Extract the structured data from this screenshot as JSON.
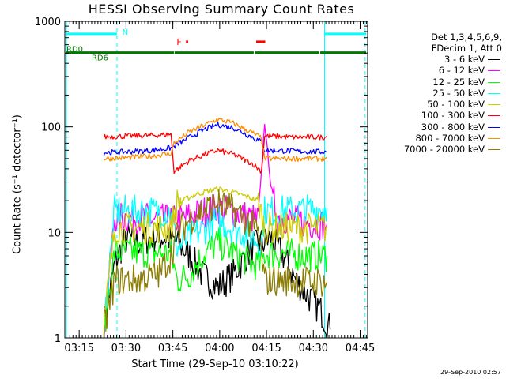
{
  "title": "HESSI Observing Summary Count Rates",
  "xlabel": "Start Time (29-Sep-10 03:10:22)",
  "ylabel": "Count Rate (s⁻¹ detector⁻¹)",
  "footer_stamp": "29-Sep-2010 02:57",
  "legend_header": [
    "Det 1,3,4,5,6,9,",
    "FDecim 1, Att 0"
  ],
  "chart_data": {
    "type": "line",
    "title": "HESSI Observing Summary Count Rates",
    "xlabel": "Start Time (29-Sep-10 03:10:22)",
    "ylabel": "Count Rate (s⁻¹ detector⁻¹)",
    "x_unit": "minutes after 03:10:22",
    "xlim": [
      0,
      97
    ],
    "ylim": [
      1,
      1000
    ],
    "yscale": "log",
    "x_ticks": [
      "03:15",
      "03:30",
      "03:45",
      "04:00",
      "04:15",
      "04:30",
      "04:45"
    ],
    "x_tick_values": [
      4.6,
      19.6,
      34.6,
      49.6,
      64.6,
      79.6,
      94.6
    ],
    "y_ticks": [
      "1",
      "10",
      "100",
      "1000"
    ],
    "y_tick_values": [
      1,
      10,
      100,
      1000
    ],
    "legend_position": "right, outside plot",
    "flag_labels": [
      "N",
      "F",
      "RD0",
      "RD6"
    ],
    "data_gaps": [
      [
        0,
        12.5
      ],
      [
        87.0,
        97
      ]
    ],
    "night_boundaries": [
      0.5,
      16.7,
      83.2,
      96.2
    ],
    "series": [
      {
        "name": "3 - 6 keV",
        "color": "#000000",
        "points": [
          [
            12.5,
            1.3
          ],
          [
            16,
            5
          ],
          [
            18,
            7
          ],
          [
            20,
            9
          ],
          [
            24,
            8
          ],
          [
            28,
            9
          ],
          [
            32,
            9
          ],
          [
            36,
            8
          ],
          [
            40,
            6
          ],
          [
            44,
            4
          ],
          [
            49,
            3
          ],
          [
            54,
            4
          ],
          [
            58,
            6
          ],
          [
            62,
            8
          ],
          [
            64,
            8
          ],
          [
            66,
            9
          ],
          [
            70,
            6
          ],
          [
            74,
            3.5
          ],
          [
            78,
            2.5
          ],
          [
            82,
            1.8
          ],
          [
            85,
            1.2
          ]
        ]
      },
      {
        "name": "6 - 12 keV",
        "color": "#ff00ff",
        "points": [
          [
            12.5,
            1.2
          ],
          [
            16,
            14
          ],
          [
            22,
            14
          ],
          [
            28,
            13.5
          ],
          [
            34,
            13
          ],
          [
            36,
            13
          ],
          [
            42,
            15
          ],
          [
            49,
            17
          ],
          [
            56,
            15
          ],
          [
            62,
            13
          ],
          [
            64,
            110
          ],
          [
            66,
            28
          ],
          [
            68,
            14
          ],
          [
            74,
            13
          ],
          [
            80,
            12
          ],
          [
            84,
            12
          ]
        ]
      },
      {
        "name": "12 - 25 keV",
        "color": "#00ff00",
        "points": [
          [
            12.5,
            1.2
          ],
          [
            16,
            6.5
          ],
          [
            24,
            6.5
          ],
          [
            34,
            6.3
          ],
          [
            36,
            3.5
          ],
          [
            40,
            4
          ],
          [
            44,
            6
          ],
          [
            49,
            8
          ],
          [
            54,
            6.5
          ],
          [
            60,
            5
          ],
          [
            63,
            5
          ],
          [
            64,
            6.3
          ],
          [
            70,
            6.3
          ],
          [
            78,
            6
          ],
          [
            84,
            6
          ]
        ]
      },
      {
        "name": "25 - 50 keV",
        "color": "#00ffff",
        "points": [
          [
            12.5,
            1.3
          ],
          [
            16,
            16
          ],
          [
            24,
            16
          ],
          [
            34,
            15.5
          ],
          [
            36,
            7
          ],
          [
            40,
            9
          ],
          [
            45,
            11
          ],
          [
            49,
            13
          ],
          [
            54,
            11
          ],
          [
            60,
            9
          ],
          [
            63,
            8
          ],
          [
            64,
            16
          ],
          [
            72,
            16
          ],
          [
            80,
            16.5
          ],
          [
            84,
            17
          ]
        ]
      },
      {
        "name": "50 - 100 keV",
        "color": "#cccc00",
        "points": [
          [
            12.5,
            1.3
          ],
          [
            16,
            11
          ],
          [
            24,
            11
          ],
          [
            34,
            11
          ],
          [
            36,
            19
          ],
          [
            42,
            23
          ],
          [
            49,
            26
          ],
          [
            56,
            23
          ],
          [
            62,
            20
          ],
          [
            64,
            11
          ],
          [
            72,
            11
          ],
          [
            80,
            11
          ],
          [
            84,
            11
          ]
        ]
      },
      {
        "name": "100 - 300 keV",
        "color": "#ff0000",
        "points": [
          [
            12.5,
            80
          ],
          [
            20,
            82
          ],
          [
            28,
            83
          ],
          [
            34,
            85
          ],
          [
            35,
            38
          ],
          [
            40,
            48
          ],
          [
            45,
            55
          ],
          [
            49,
            60
          ],
          [
            54,
            55
          ],
          [
            60,
            45
          ],
          [
            63,
            38
          ],
          [
            64,
            82
          ],
          [
            72,
            80
          ],
          [
            80,
            80
          ],
          [
            84,
            80
          ]
        ]
      },
      {
        "name": "300 - 800 keV",
        "color": "#0000ff",
        "points": [
          [
            12.5,
            57
          ],
          [
            20,
            58
          ],
          [
            28,
            60
          ],
          [
            34,
            63
          ],
          [
            35,
            65
          ],
          [
            40,
            80
          ],
          [
            45,
            95
          ],
          [
            49,
            105
          ],
          [
            54,
            98
          ],
          [
            60,
            80
          ],
          [
            63,
            72
          ],
          [
            64,
            60
          ],
          [
            72,
            59
          ],
          [
            80,
            58
          ],
          [
            84,
            58
          ]
        ]
      },
      {
        "name": "800 - 7000 keV",
        "color": "#ff8c00",
        "points": [
          [
            12.5,
            50
          ],
          [
            20,
            51
          ],
          [
            28,
            53
          ],
          [
            34,
            56
          ],
          [
            35,
            70
          ],
          [
            40,
            90
          ],
          [
            45,
            105
          ],
          [
            49,
            118
          ],
          [
            54,
            108
          ],
          [
            60,
            88
          ],
          [
            63,
            78
          ],
          [
            64,
            50
          ],
          [
            72,
            50
          ],
          [
            80,
            50
          ],
          [
            84,
            50
          ]
        ]
      },
      {
        "name": "7000 - 20000 keV",
        "color": "#8b7d00",
        "points": [
          [
            12.5,
            1.2
          ],
          [
            16,
            3.5
          ],
          [
            24,
            3.6
          ],
          [
            30,
            4
          ],
          [
            34,
            6
          ],
          [
            36,
            10
          ],
          [
            42,
            15
          ],
          [
            49,
            19
          ],
          [
            56,
            15
          ],
          [
            62,
            10
          ],
          [
            64,
            3.5
          ],
          [
            72,
            3.5
          ],
          [
            80,
            3.4
          ],
          [
            84,
            3.4
          ]
        ]
      }
    ]
  }
}
